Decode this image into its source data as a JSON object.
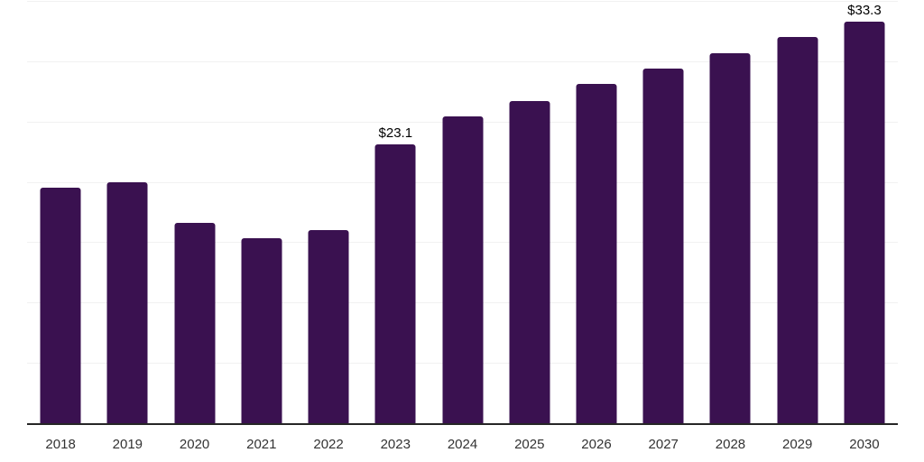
{
  "chart_data": {
    "type": "bar",
    "title": "",
    "xlabel": "",
    "ylabel": "",
    "categories": [
      "2018",
      "2019",
      "2020",
      "2021",
      "2022",
      "2023",
      "2024",
      "2025",
      "2026",
      "2027",
      "2028",
      "2029",
      "2030"
    ],
    "values": [
      19.5,
      20.0,
      16.6,
      15.3,
      16.0,
      23.1,
      25.4,
      26.7,
      28.1,
      29.4,
      30.7,
      32.0,
      33.3
    ],
    "data_labels": [
      "",
      "",
      "",
      "",
      "",
      "$23.1",
      "",
      "",
      "",
      "",
      "",
      "",
      "$33.3"
    ],
    "ylim": [
      0,
      35
    ],
    "grid_interval": 5,
    "grid": true,
    "legend": false,
    "y_axis_labels_visible": false,
    "colors": {
      "bar": "#3a1150",
      "gridline": "#f1f1f1",
      "axis_line": "#262626",
      "tick_label": "#333333",
      "data_label": "#000000",
      "background": "#ffffff"
    }
  }
}
